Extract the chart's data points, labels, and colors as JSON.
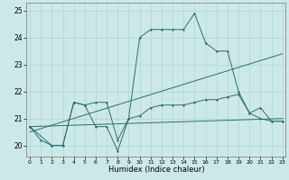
{
  "xlabel": "Humidex (Indice chaleur)",
  "x_main": [
    0,
    1,
    2,
    3,
    4,
    5,
    6,
    7,
    8,
    9,
    10,
    11,
    12,
    13,
    14,
    15,
    16,
    17,
    18,
    19,
    20,
    21,
    22,
    23
  ],
  "line1": [
    20.7,
    20.2,
    20.0,
    20.0,
    21.6,
    21.5,
    20.7,
    20.7,
    19.8,
    21.0,
    24.0,
    24.3,
    24.3,
    24.3,
    24.3,
    24.9,
    23.8,
    23.5,
    23.5,
    22.0,
    21.2,
    21.0,
    20.9,
    20.9
  ],
  "x_line2": [
    0,
    2,
    3,
    4,
    5,
    6,
    7,
    8,
    9,
    10,
    11,
    12,
    13,
    14,
    15,
    16,
    17,
    18,
    19,
    20,
    21,
    22,
    23
  ],
  "line2": [
    20.7,
    20.0,
    20.0,
    21.6,
    21.5,
    21.6,
    21.6,
    20.2,
    21.0,
    21.1,
    21.4,
    21.5,
    21.5,
    21.5,
    21.6,
    21.7,
    21.7,
    21.8,
    21.9,
    21.2,
    21.4,
    20.9,
    20.9
  ],
  "trend1_x": [
    0,
    23
  ],
  "trend1_y": [
    20.7,
    21.0
  ],
  "trend2_x": [
    0,
    23
  ],
  "trend2_y": [
    20.5,
    23.4
  ],
  "bg_color": "#cde8e8",
  "line_color": "#2e6e6e",
  "grid_color": "#add4d4",
  "ylim": [
    19.6,
    25.3
  ],
  "yticks": [
    20,
    21,
    22,
    23,
    24,
    25
  ],
  "xticks": [
    0,
    1,
    2,
    3,
    4,
    5,
    6,
    7,
    8,
    9,
    10,
    11,
    12,
    13,
    14,
    15,
    16,
    17,
    18,
    19,
    20,
    21,
    22,
    23
  ],
  "xlim": [
    -0.3,
    23.3
  ]
}
